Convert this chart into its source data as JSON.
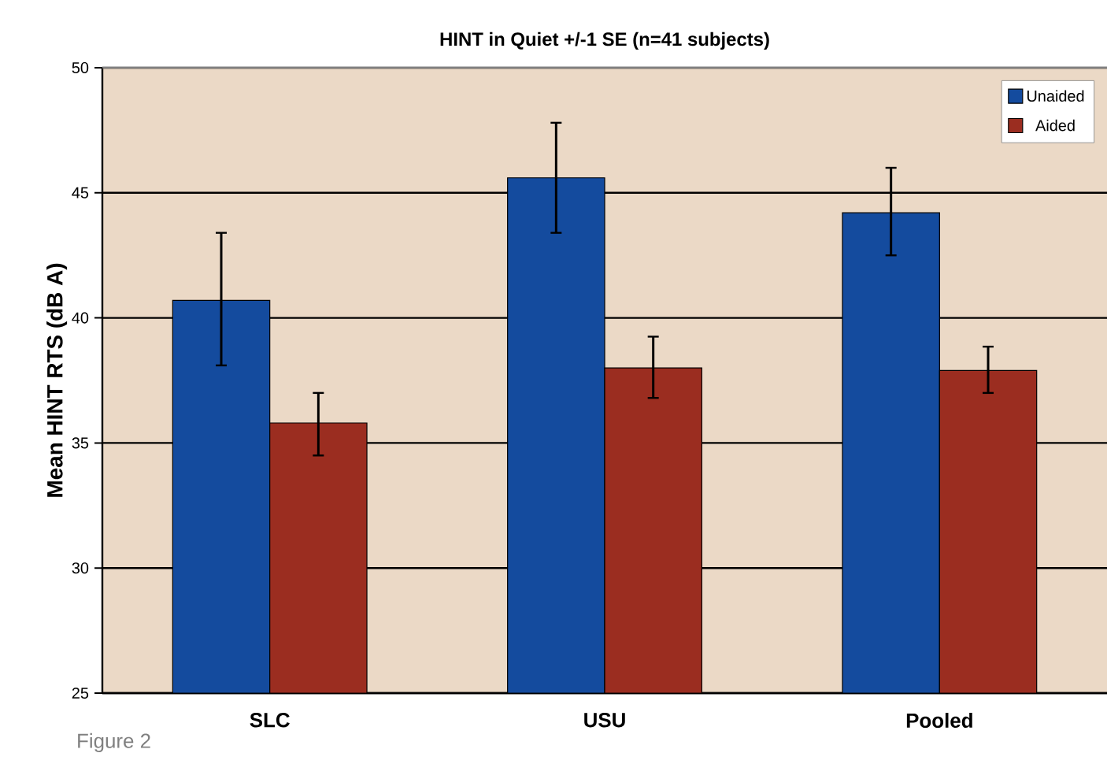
{
  "chart_data": {
    "type": "bar",
    "title": "HINT in Quiet +/-1 SE (n=41 subjects)",
    "ylabel": "Mean HINT RTS (dB A)",
    "categories": [
      "SLC",
      "USU",
      "Pooled"
    ],
    "series": [
      {
        "name": "Unaided",
        "color": "#144b9e",
        "values": [
          40.7,
          45.6,
          44.2
        ],
        "errors": [
          [
            38.1,
            43.4
          ],
          [
            43.4,
            47.8
          ],
          [
            42.5,
            46.0
          ]
        ]
      },
      {
        "name": "Aided",
        "color": "#9b2d20",
        "values": [
          35.8,
          38.0,
          37.9
        ],
        "errors": [
          [
            34.5,
            37.0
          ],
          [
            36.8,
            39.25
          ],
          [
            37.0,
            38.85
          ]
        ]
      }
    ],
    "ylim": [
      25,
      50
    ],
    "yticks": [
      25,
      30,
      35,
      40,
      45,
      50
    ],
    "grid": "y",
    "legend": "top right",
    "annotations": [
      "Figure 2"
    ]
  }
}
